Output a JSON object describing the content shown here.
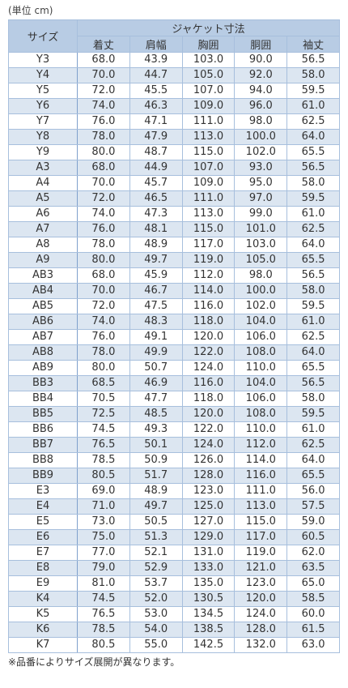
{
  "unit_note": "(単位 cm)",
  "table": {
    "size_header": "サイズ",
    "group_header": "ジャケット寸法",
    "columns": [
      "着丈",
      "肩幅",
      "胸囲",
      "胴囲",
      "袖丈"
    ],
    "rows": [
      [
        "Y3",
        "68.0",
        "43.9",
        "103.0",
        "90.0",
        "56.5"
      ],
      [
        "Y4",
        "70.0",
        "44.7",
        "105.0",
        "92.0",
        "58.0"
      ],
      [
        "Y5",
        "72.0",
        "45.5",
        "107.0",
        "94.0",
        "59.5"
      ],
      [
        "Y6",
        "74.0",
        "46.3",
        "109.0",
        "96.0",
        "61.0"
      ],
      [
        "Y7",
        "76.0",
        "47.1",
        "111.0",
        "98.0",
        "62.5"
      ],
      [
        "Y8",
        "78.0",
        "47.9",
        "113.0",
        "100.0",
        "64.0"
      ],
      [
        "Y9",
        "80.0",
        "48.7",
        "115.0",
        "102.0",
        "65.5"
      ],
      [
        "A3",
        "68.0",
        "44.9",
        "107.0",
        "93.0",
        "56.5"
      ],
      [
        "A4",
        "70.0",
        "45.7",
        "109.0",
        "95.0",
        "58.0"
      ],
      [
        "A5",
        "72.0",
        "46.5",
        "111.0",
        "97.0",
        "59.5"
      ],
      [
        "A6",
        "74.0",
        "47.3",
        "113.0",
        "99.0",
        "61.0"
      ],
      [
        "A7",
        "76.0",
        "48.1",
        "115.0",
        "101.0",
        "62.5"
      ],
      [
        "A8",
        "78.0",
        "48.9",
        "117.0",
        "103.0",
        "64.0"
      ],
      [
        "A9",
        "80.0",
        "49.7",
        "119.0",
        "105.0",
        "65.5"
      ],
      [
        "AB3",
        "68.0",
        "45.9",
        "112.0",
        "98.0",
        "56.5"
      ],
      [
        "AB4",
        "70.0",
        "46.7",
        "114.0",
        "100.0",
        "58.0"
      ],
      [
        "AB5",
        "72.0",
        "47.5",
        "116.0",
        "102.0",
        "59.5"
      ],
      [
        "AB6",
        "74.0",
        "48.3",
        "118.0",
        "104.0",
        "61.0"
      ],
      [
        "AB7",
        "76.0",
        "49.1",
        "120.0",
        "106.0",
        "62.5"
      ],
      [
        "AB8",
        "78.0",
        "49.9",
        "122.0",
        "108.0",
        "64.0"
      ],
      [
        "AB9",
        "80.0",
        "50.7",
        "124.0",
        "110.0",
        "65.5"
      ],
      [
        "BB3",
        "68.5",
        "46.9",
        "116.0",
        "104.0",
        "56.5"
      ],
      [
        "BB4",
        "70.5",
        "47.7",
        "118.0",
        "106.0",
        "58.0"
      ],
      [
        "BB5",
        "72.5",
        "48.5",
        "120.0",
        "108.0",
        "59.5"
      ],
      [
        "BB6",
        "74.5",
        "49.3",
        "122.0",
        "110.0",
        "61.0"
      ],
      [
        "BB7",
        "76.5",
        "50.1",
        "124.0",
        "112.0",
        "62.5"
      ],
      [
        "BB8",
        "78.5",
        "50.9",
        "126.0",
        "114.0",
        "64.0"
      ],
      [
        "BB9",
        "80.5",
        "51.7",
        "128.0",
        "116.0",
        "65.5"
      ],
      [
        "E3",
        "69.0",
        "48.9",
        "123.0",
        "111.0",
        "56.0"
      ],
      [
        "E4",
        "71.0",
        "49.7",
        "125.0",
        "113.0",
        "57.5"
      ],
      [
        "E5",
        "73.0",
        "50.5",
        "127.0",
        "115.0",
        "59.0"
      ],
      [
        "E6",
        "75.0",
        "51.3",
        "129.0",
        "117.0",
        "60.5"
      ],
      [
        "E7",
        "77.0",
        "52.1",
        "131.0",
        "119.0",
        "62.0"
      ],
      [
        "E8",
        "79.0",
        "52.9",
        "133.0",
        "121.0",
        "63.5"
      ],
      [
        "E9",
        "81.0",
        "53.7",
        "135.0",
        "123.0",
        "65.0"
      ],
      [
        "K4",
        "74.5",
        "52.0",
        "130.5",
        "120.0",
        "58.5"
      ],
      [
        "K5",
        "76.5",
        "53.0",
        "134.5",
        "124.0",
        "60.0"
      ],
      [
        "K6",
        "78.5",
        "54.0",
        "138.5",
        "128.0",
        "61.5"
      ],
      [
        "K7",
        "80.5",
        "55.0",
        "142.5",
        "132.0",
        "63.0"
      ]
    ]
  },
  "footnote": "※品番によりサイズ展開が異なります。"
}
